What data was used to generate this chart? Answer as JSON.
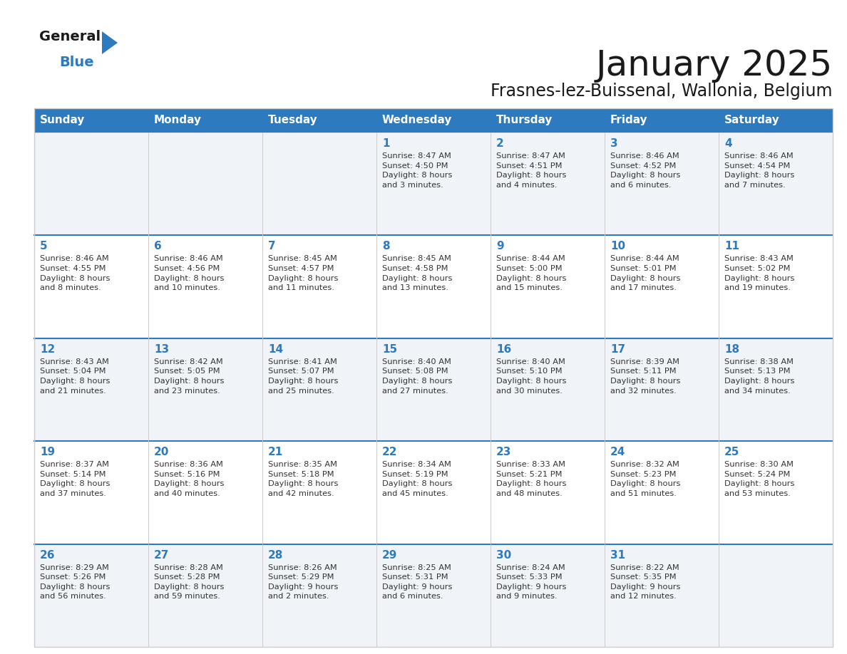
{
  "title": "January 2025",
  "subtitle": "Frasnes-lez-Buissenal, Wallonia, Belgium",
  "days_of_week": [
    "Sunday",
    "Monday",
    "Tuesday",
    "Wednesday",
    "Thursday",
    "Friday",
    "Saturday"
  ],
  "header_bg": "#2E7ABF",
  "header_text": "#FFFFFF",
  "cell_bg_odd": "#F0F4F8",
  "cell_bg_even": "#FFFFFF",
  "day_num_color": "#2E7ABF",
  "text_color": "#333333",
  "line_color": "#CCCCCC",
  "row_sep_color": "#2E7ABF",
  "title_color": "#1a1a1a",
  "logo_general_color": "#1a1a1a",
  "logo_blue_color": "#2E7ABF",
  "logo_triangle_color": "#2E7ABF",
  "calendar_data": [
    [
      {
        "day": null,
        "info": ""
      },
      {
        "day": null,
        "info": ""
      },
      {
        "day": null,
        "info": ""
      },
      {
        "day": 1,
        "info": "Sunrise: 8:47 AM\nSunset: 4:50 PM\nDaylight: 8 hours\nand 3 minutes."
      },
      {
        "day": 2,
        "info": "Sunrise: 8:47 AM\nSunset: 4:51 PM\nDaylight: 8 hours\nand 4 minutes."
      },
      {
        "day": 3,
        "info": "Sunrise: 8:46 AM\nSunset: 4:52 PM\nDaylight: 8 hours\nand 6 minutes."
      },
      {
        "day": 4,
        "info": "Sunrise: 8:46 AM\nSunset: 4:54 PM\nDaylight: 8 hours\nand 7 minutes."
      }
    ],
    [
      {
        "day": 5,
        "info": "Sunrise: 8:46 AM\nSunset: 4:55 PM\nDaylight: 8 hours\nand 8 minutes."
      },
      {
        "day": 6,
        "info": "Sunrise: 8:46 AM\nSunset: 4:56 PM\nDaylight: 8 hours\nand 10 minutes."
      },
      {
        "day": 7,
        "info": "Sunrise: 8:45 AM\nSunset: 4:57 PM\nDaylight: 8 hours\nand 11 minutes."
      },
      {
        "day": 8,
        "info": "Sunrise: 8:45 AM\nSunset: 4:58 PM\nDaylight: 8 hours\nand 13 minutes."
      },
      {
        "day": 9,
        "info": "Sunrise: 8:44 AM\nSunset: 5:00 PM\nDaylight: 8 hours\nand 15 minutes."
      },
      {
        "day": 10,
        "info": "Sunrise: 8:44 AM\nSunset: 5:01 PM\nDaylight: 8 hours\nand 17 minutes."
      },
      {
        "day": 11,
        "info": "Sunrise: 8:43 AM\nSunset: 5:02 PM\nDaylight: 8 hours\nand 19 minutes."
      }
    ],
    [
      {
        "day": 12,
        "info": "Sunrise: 8:43 AM\nSunset: 5:04 PM\nDaylight: 8 hours\nand 21 minutes."
      },
      {
        "day": 13,
        "info": "Sunrise: 8:42 AM\nSunset: 5:05 PM\nDaylight: 8 hours\nand 23 minutes."
      },
      {
        "day": 14,
        "info": "Sunrise: 8:41 AM\nSunset: 5:07 PM\nDaylight: 8 hours\nand 25 minutes."
      },
      {
        "day": 15,
        "info": "Sunrise: 8:40 AM\nSunset: 5:08 PM\nDaylight: 8 hours\nand 27 minutes."
      },
      {
        "day": 16,
        "info": "Sunrise: 8:40 AM\nSunset: 5:10 PM\nDaylight: 8 hours\nand 30 minutes."
      },
      {
        "day": 17,
        "info": "Sunrise: 8:39 AM\nSunset: 5:11 PM\nDaylight: 8 hours\nand 32 minutes."
      },
      {
        "day": 18,
        "info": "Sunrise: 8:38 AM\nSunset: 5:13 PM\nDaylight: 8 hours\nand 34 minutes."
      }
    ],
    [
      {
        "day": 19,
        "info": "Sunrise: 8:37 AM\nSunset: 5:14 PM\nDaylight: 8 hours\nand 37 minutes."
      },
      {
        "day": 20,
        "info": "Sunrise: 8:36 AM\nSunset: 5:16 PM\nDaylight: 8 hours\nand 40 minutes."
      },
      {
        "day": 21,
        "info": "Sunrise: 8:35 AM\nSunset: 5:18 PM\nDaylight: 8 hours\nand 42 minutes."
      },
      {
        "day": 22,
        "info": "Sunrise: 8:34 AM\nSunset: 5:19 PM\nDaylight: 8 hours\nand 45 minutes."
      },
      {
        "day": 23,
        "info": "Sunrise: 8:33 AM\nSunset: 5:21 PM\nDaylight: 8 hours\nand 48 minutes."
      },
      {
        "day": 24,
        "info": "Sunrise: 8:32 AM\nSunset: 5:23 PM\nDaylight: 8 hours\nand 51 minutes."
      },
      {
        "day": 25,
        "info": "Sunrise: 8:30 AM\nSunset: 5:24 PM\nDaylight: 8 hours\nand 53 minutes."
      }
    ],
    [
      {
        "day": 26,
        "info": "Sunrise: 8:29 AM\nSunset: 5:26 PM\nDaylight: 8 hours\nand 56 minutes."
      },
      {
        "day": 27,
        "info": "Sunrise: 8:28 AM\nSunset: 5:28 PM\nDaylight: 8 hours\nand 59 minutes."
      },
      {
        "day": 28,
        "info": "Sunrise: 8:26 AM\nSunset: 5:29 PM\nDaylight: 9 hours\nand 2 minutes."
      },
      {
        "day": 29,
        "info": "Sunrise: 8:25 AM\nSunset: 5:31 PM\nDaylight: 9 hours\nand 6 minutes."
      },
      {
        "day": 30,
        "info": "Sunrise: 8:24 AM\nSunset: 5:33 PM\nDaylight: 9 hours\nand 9 minutes."
      },
      {
        "day": 31,
        "info": "Sunrise: 8:22 AM\nSunset: 5:35 PM\nDaylight: 9 hours\nand 12 minutes."
      },
      {
        "day": null,
        "info": ""
      }
    ]
  ]
}
